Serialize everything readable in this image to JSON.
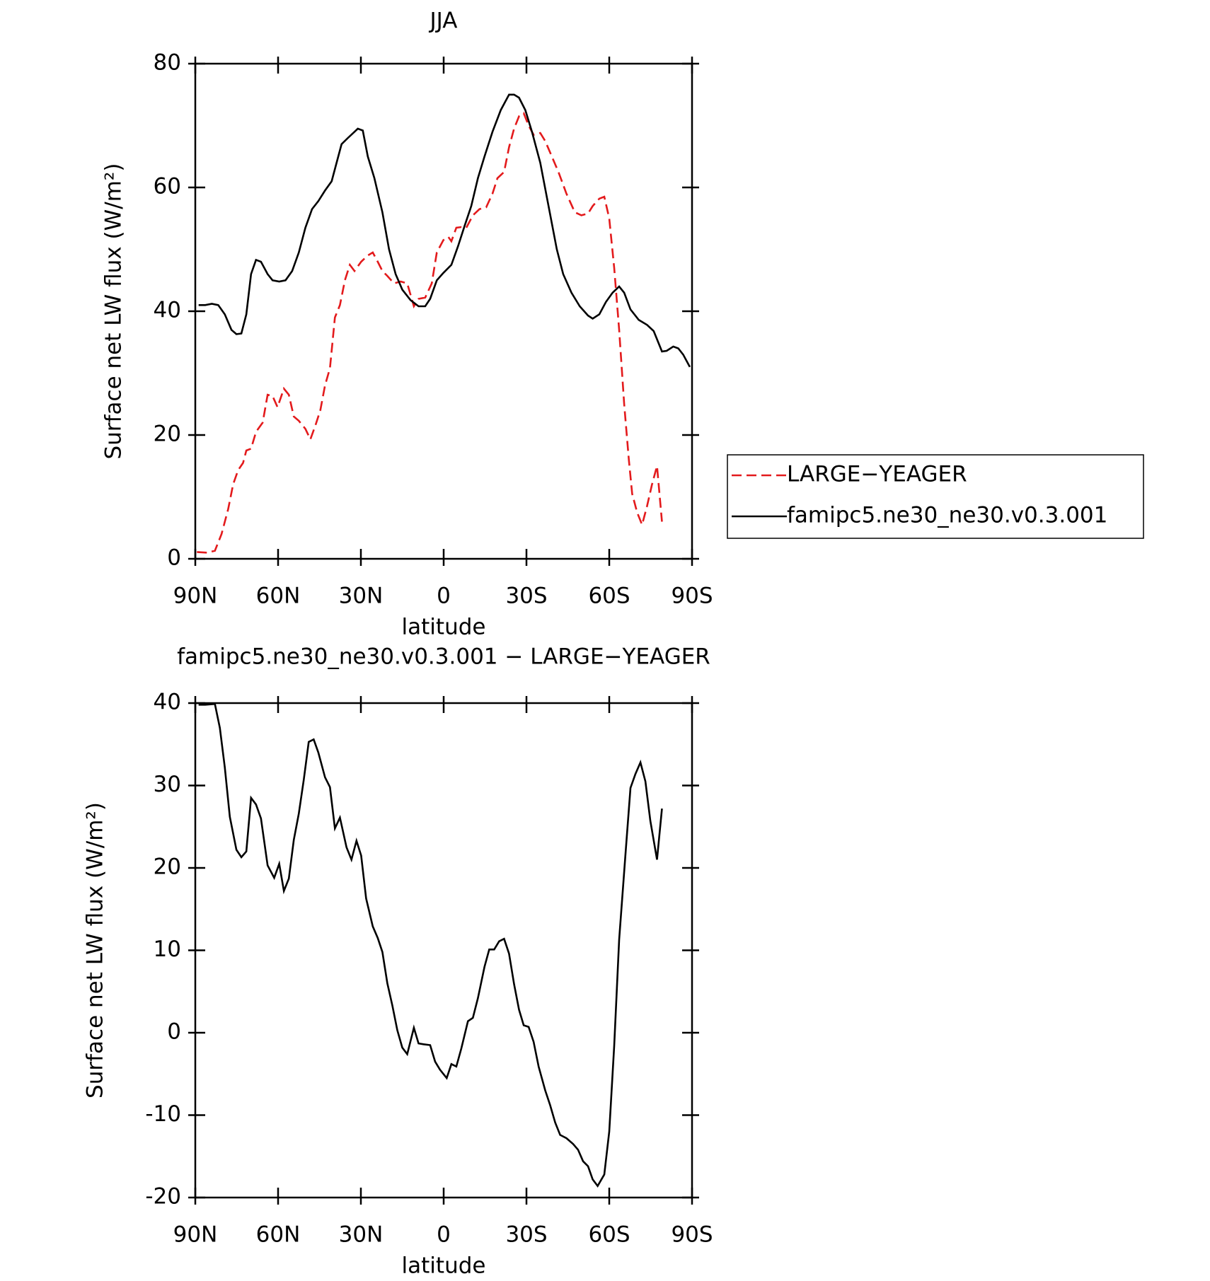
{
  "chart_data": [
    {
      "type": "line",
      "title": "JJA",
      "x_label": "latitude",
      "y_label": "Surface net LW flux (W/m²)",
      "xlim": [
        90,
        -90
      ],
      "ylim": [
        0,
        80
      ],
      "xticks": [
        {
          "value": 90,
          "label": "90N"
        },
        {
          "value": 60,
          "label": "60N"
        },
        {
          "value": 30,
          "label": "30N"
        },
        0,
        {
          "value": -30,
          "label": "30S"
        },
        {
          "value": -60,
          "label": "60S"
        },
        {
          "value": -90,
          "label": "90S"
        }
      ],
      "yticks": [
        0,
        20,
        40,
        60,
        80
      ],
      "legend": "outside-right",
      "series": [
        {
          "name": "LARGE−YEAGER",
          "color": "#e31a1c",
          "dash": true,
          "x": [
            89.4,
            85.8,
            82.9,
            80.5,
            78.1,
            76.3,
            74.5,
            72.7,
            71.5,
            69.8,
            68,
            65.6,
            63.8,
            62,
            60.2,
            57.9,
            56.1,
            54.3,
            52.5,
            50.1,
            48.3,
            46.5,
            44.7,
            43,
            41.2,
            39.4,
            37.6,
            35.8,
            34,
            32.3,
            29.9,
            27.5,
            25.7,
            23.9,
            22.2,
            20.4,
            18,
            15.6,
            13.2,
            10.8,
            9.1,
            6.7,
            4.3,
            2.5,
            0.1,
            -1.7,
            -2.8,
            -4.6,
            -6.4,
            -8.2,
            -10.6,
            -13,
            -15.4,
            -17.7,
            -19.5,
            -21.9,
            -23.7,
            -25.5,
            -27.3,
            -29,
            -30.8,
            -32.6,
            -35,
            -36.8,
            -39.2,
            -41.6,
            -44.5,
            -47.5,
            -49.9,
            -52.3,
            -54,
            -56.4,
            -58.2,
            -60,
            -61.8,
            -63.6,
            -65.4,
            -67.1,
            -68.3,
            -70.1,
            -71.9,
            -73.7,
            -75.5,
            -77.3,
            -79.1
          ],
          "values": [
            1.1,
            1,
            1.3,
            4,
            8,
            12,
            14.3,
            15.5,
            17.5,
            17.8,
            20.5,
            22,
            26.5,
            26.3,
            24.5,
            27.5,
            26.5,
            23,
            22.3,
            21,
            19.3,
            21.5,
            24,
            28,
            30.8,
            39,
            41,
            45,
            47.5,
            46.5,
            48,
            49,
            49.5,
            48,
            46.5,
            45.7,
            44.5,
            44.8,
            44.5,
            40.8,
            42,
            42.2,
            44.5,
            49.5,
            51.5,
            52,
            51.3,
            53.5,
            53.6,
            53.5,
            55.5,
            56.5,
            56.8,
            59,
            61.5,
            62.5,
            66.5,
            69.5,
            71.5,
            72,
            70,
            68.5,
            68.8,
            67.5,
            65,
            62.5,
            59,
            56,
            55.5,
            55.8,
            57,
            58.2,
            58.5,
            55,
            47,
            37,
            25,
            16,
            10.5,
            7.5,
            5.5,
            8.5,
            12,
            15,
            6
          ]
        },
        {
          "name": "famipc5.ne30_ne30.v0.3.001",
          "color": "#000000",
          "dash": false,
          "x": [
            88.8,
            86.4,
            84,
            81.7,
            79.3,
            76.9,
            75.1,
            73.3,
            71.5,
            69.8,
            68,
            66.2,
            63.8,
            62,
            59.6,
            57.3,
            54.9,
            52.5,
            50.1,
            47.7,
            45.4,
            43,
            40.6,
            38.8,
            37,
            34.7,
            32.3,
            31.1,
            29.3,
            27.5,
            25.1,
            22.2,
            19.8,
            17.4,
            15,
            12,
            9.1,
            6.7,
            4.9,
            2.5,
            0.1,
            -2.8,
            -5.2,
            -7.6,
            -10,
            -12.4,
            -14.8,
            -17.7,
            -20.7,
            -23.7,
            -25.5,
            -27.3,
            -29.6,
            -32,
            -35,
            -38,
            -41,
            -43.3,
            -46.3,
            -49.3,
            -52.3,
            -54,
            -56.4,
            -58.8,
            -61.2,
            -63.6,
            -65.4,
            -67.7,
            -70.7,
            -73.7,
            -76.1,
            -79.1,
            -80.8,
            -83.2,
            -85,
            -86.8,
            -89.2
          ],
          "values": [
            41,
            41,
            41.2,
            41,
            39.5,
            37,
            36.3,
            36.4,
            39.5,
            46,
            48.3,
            48,
            46,
            45,
            44.8,
            45,
            46.5,
            49.5,
            53.5,
            56.5,
            57.8,
            59.5,
            61,
            64,
            67,
            68,
            69,
            69.5,
            69.2,
            65,
            61.5,
            56,
            50,
            46,
            43.5,
            41.8,
            40.8,
            40.8,
            42,
            45,
            46.2,
            47.5,
            50.5,
            53.8,
            57,
            61.5,
            65,
            69,
            72.5,
            75,
            75,
            74.5,
            72.5,
            69,
            64,
            57,
            50,
            46,
            43,
            40.8,
            39.3,
            38.8,
            39.5,
            41.5,
            43,
            44,
            43,
            40.3,
            38.6,
            37.8,
            36.8,
            33.5,
            33.6,
            34.3,
            34,
            33,
            31
          ]
        }
      ]
    },
    {
      "type": "line",
      "title": "famipc5.ne30_ne30.v0.3.001 − LARGE−YEAGER",
      "x_label": "latitude",
      "y_label": "Surface net LW flux (W/m²)",
      "xlim": [
        90,
        -90
      ],
      "ylim": [
        -20,
        40
      ],
      "xticks": [
        {
          "value": 90,
          "label": "90N"
        },
        {
          "value": 60,
          "label": "60N"
        },
        {
          "value": 30,
          "label": "30N"
        },
        0,
        {
          "value": -30,
          "label": "30S"
        },
        {
          "value": -60,
          "label": "60S"
        },
        {
          "value": -90,
          "label": "90S"
        }
      ],
      "yticks": [
        -20,
        -10,
        0,
        10,
        20,
        30,
        40
      ],
      "series": [
        {
          "color": "#000000",
          "dash": false,
          "x": [
            88.8,
            86.4,
            82.9,
            81.1,
            79.3,
            77.5,
            75.1,
            73.3,
            71.5,
            69.8,
            68,
            66.2,
            63.8,
            61.4,
            59.6,
            57.9,
            56.1,
            54.3,
            52.5,
            50.7,
            48.9,
            47.1,
            45.4,
            43,
            41.2,
            39.4,
            37.6,
            35.2,
            33.4,
            31.6,
            29.9,
            28.1,
            25.7,
            23.9,
            22.2,
            20.4,
            18.6,
            16.8,
            15,
            13.2,
            10.8,
            9.1,
            7.3,
            4.9,
            3.1,
            1.3,
            -1.1,
            -2.8,
            -4.6,
            -6.4,
            -8.8,
            -10.6,
            -12.4,
            -14.8,
            -16.5,
            -18.3,
            -20.1,
            -21.9,
            -23.7,
            -25.5,
            -27.3,
            -29,
            -30.8,
            -32.6,
            -34.4,
            -36.8,
            -38.6,
            -40.4,
            -42.2,
            -44.5,
            -46.9,
            -48.7,
            -50.5,
            -52.3,
            -54,
            -55.8,
            -58.2,
            -60,
            -61.8,
            -63.6,
            -66,
            -67.7,
            -69.5,
            -71.3,
            -73.1,
            -74.9,
            -77.3,
            -79.1
          ],
          "values": [
            39.8,
            39.8,
            39.9,
            37,
            32.2,
            26.2,
            22.2,
            21.3,
            22,
            28.5,
            27.7,
            26,
            20.3,
            18.8,
            20.5,
            17.2,
            18.7,
            23.4,
            26.6,
            30.7,
            35.3,
            35.6,
            34,
            31,
            29.8,
            24.8,
            26.1,
            22.5,
            21,
            23.3,
            21.5,
            16.3,
            12.9,
            11.5,
            9.8,
            6,
            3.3,
            0.3,
            -1.8,
            -2.6,
            0.6,
            -1.3,
            -1.4,
            -1.5,
            -3.5,
            -4.5,
            -5.5,
            -3.8,
            -4.1,
            -1.9,
            1.4,
            1.8,
            4.2,
            8,
            10.1,
            10.1,
            11.1,
            11.4,
            9.6,
            5.9,
            2.8,
            0.9,
            0.7,
            -1.1,
            -4.1,
            -7,
            -8.8,
            -10.9,
            -12.4,
            -12.8,
            -13.5,
            -14.2,
            -15.6,
            -16.2,
            -17.8,
            -18.6,
            -17.2,
            -12,
            -1.6,
            11.3,
            22.2,
            29.7,
            31.4,
            32.8,
            30.5,
            25.7,
            21,
            27.2
          ]
        }
      ]
    }
  ]
}
